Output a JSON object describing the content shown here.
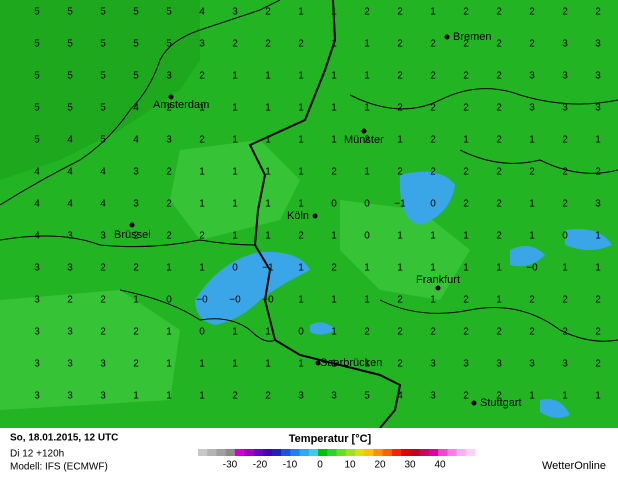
{
  "map": {
    "grid": {
      "rows": [
        [
          "5",
          "5",
          "5",
          "5",
          "5",
          "4",
          "3",
          "2",
          "1",
          "1",
          "2",
          "2",
          "1",
          "2",
          "2",
          "2",
          "2",
          "2"
        ],
        [
          "5",
          "5",
          "5",
          "5",
          "5",
          "3",
          "2",
          "2",
          "2",
          "1",
          "1",
          "2",
          "2",
          "2",
          "2",
          "2",
          "3",
          "3"
        ],
        [
          "5",
          "5",
          "5",
          "5",
          "3",
          "2",
          "1",
          "1",
          "1",
          "1",
          "1",
          "2",
          "2",
          "2",
          "2",
          "3",
          "3",
          "3"
        ],
        [
          "5",
          "5",
          "5",
          "4",
          "2",
          "1",
          "1",
          "1",
          "1",
          "1",
          "1",
          "2",
          "2",
          "2",
          "2",
          "3",
          "3",
          "3"
        ],
        [
          "5",
          "4",
          "5",
          "4",
          "3",
          "2",
          "1",
          "1",
          "1",
          "1",
          "2",
          "1",
          "2",
          "1",
          "2",
          "1",
          "2",
          "1"
        ],
        [
          "4",
          "4",
          "4",
          "3",
          "2",
          "1",
          "1",
          "1",
          "1",
          "2",
          "1",
          "2",
          "2",
          "2",
          "2",
          "2",
          "2",
          "2"
        ],
        [
          "4",
          "4",
          "4",
          "3",
          "2",
          "1",
          "1",
          "1",
          "1",
          "0",
          "0",
          "−1",
          "0",
          "2",
          "2",
          "1",
          "2",
          "3"
        ],
        [
          "4",
          "3",
          "3",
          "2",
          "2",
          "2",
          "1",
          "1",
          "2",
          "1",
          "0",
          "1",
          "1",
          "1",
          "2",
          "1",
          "0",
          "1"
        ],
        [
          "3",
          "3",
          "2",
          "2",
          "1",
          "1",
          "0",
          "−1",
          "1",
          "2",
          "1",
          "1",
          "1",
          "1",
          "1",
          "−0",
          "1",
          "1"
        ],
        [
          "3",
          "2",
          "2",
          "1",
          "0",
          "−0",
          "−0",
          "−0",
          "1",
          "1",
          "1",
          "2",
          "1",
          "2",
          "1",
          "2",
          "2",
          "2"
        ],
        [
          "3",
          "3",
          "2",
          "2",
          "1",
          "0",
          "1",
          "1",
          "0",
          "1",
          "2",
          "2",
          "2",
          "2",
          "2",
          "2",
          "2",
          "2"
        ],
        [
          "3",
          "3",
          "3",
          "2",
          "1",
          "1",
          "1",
          "1",
          "1",
          "1",
          "1",
          "2",
          "3",
          "3",
          "3",
          "3",
          "3",
          "2"
        ],
        [
          "3",
          "3",
          "3",
          "1",
          "1",
          "1",
          "2",
          "2",
          "3",
          "3",
          "5",
          "4",
          "3",
          "2",
          "2",
          "1",
          "1",
          "1"
        ]
      ]
    },
    "cities": [
      "Bremen",
      "Amsterdam",
      "Münster",
      "Köln",
      "Brüssel",
      "Frankfurt",
      "Saarbrücken",
      "Stuttgart"
    ],
    "footer": {
      "date": "So, 18.01.2015, 12 UTC",
      "run": "Di 12 +120h",
      "model": "Modell: IFS (ECMWF)",
      "brand": "WetterOnline"
    },
    "colorbar": {
      "title": "Temperatur [°C]",
      "ticks": [
        -30,
        -20,
        -10,
        0,
        10,
        20,
        30,
        40
      ],
      "colors": [
        "#c8c8c8",
        "#b4b4b4",
        "#a0a0a0",
        "#8c8c8c",
        "#d000d0",
        "#a000c0",
        "#7000c0",
        "#4000b0",
        "#2020c0",
        "#2050e0",
        "#2080f0",
        "#30a8f0",
        "#40c8f0",
        "#00c000",
        "#30d030",
        "#60e020",
        "#a0e020",
        "#e0e000",
        "#ffc000",
        "#ff9000",
        "#ff6000",
        "#ff2000",
        "#e00000",
        "#c00020",
        "#d00060",
        "#e000a0",
        "#ff40d0",
        "#ff80e0",
        "#ffb0f0",
        "#ffd0f8"
      ]
    }
  }
}
